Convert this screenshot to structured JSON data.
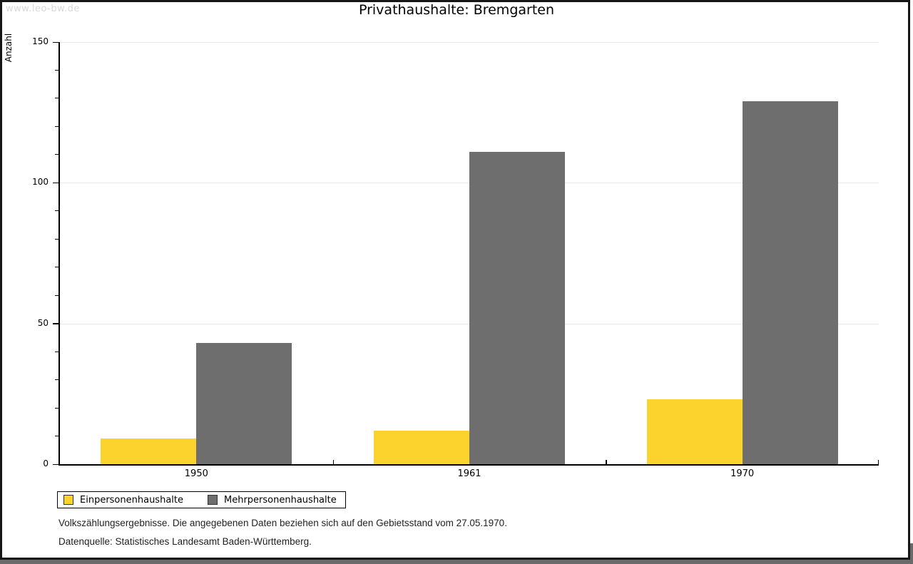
{
  "watermark": "www.leo-bw.de",
  "title": "Privathaushalte: Bremgarten",
  "chart_data": {
    "type": "bar",
    "title": "Privathaushalte: Bremgarten",
    "xlabel": "",
    "ylabel": "Anzahl",
    "categories": [
      "1950",
      "1961",
      "1970"
    ],
    "series": [
      {
        "name": "Einpersonenhaushalte",
        "color": "#FCD32D",
        "values": [
          9,
          12,
          23
        ]
      },
      {
        "name": "Mehrpersonenhaushalte",
        "color": "#6E6E6E",
        "values": [
          43,
          111,
          129
        ]
      }
    ],
    "ylim": [
      0,
      150
    ],
    "yticks_major": [
      0,
      50,
      100,
      150
    ],
    "ytick_minor_step": 10,
    "grid": "horizontal-major",
    "legend_position": "bottom-left"
  },
  "footer": {
    "line1": "Volkszählungsergebnisse. Die angegebenen Daten beziehen sich auf den Gebietsstand vom 27.05.1970.",
    "line2": "Datenquelle: Statistisches Landesamt Baden-Württemberg."
  },
  "colors": {
    "gridline": "#E8E8E8",
    "axis": "#000000",
    "watermark": "#D8D8D8",
    "frame_border": "#161616",
    "shadow": "#6A6A6A",
    "background": "#FFFFFF"
  }
}
